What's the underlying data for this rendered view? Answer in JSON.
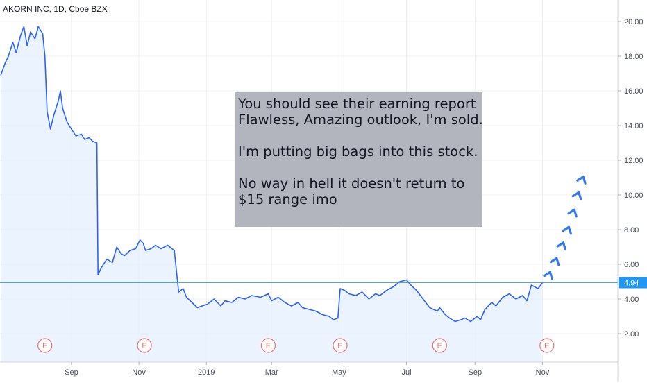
{
  "header": {
    "symbol_title": "AKORN INC, 1D, Cboe BZX"
  },
  "annotation": {
    "lines": [
      "You should see their earning report",
      "Flawless, Amazing outlook, I'm sold.",
      "",
      "I'm putting big bags into this stock.",
      "",
      "No way in hell it doesn't return to",
      "$15 range imo"
    ]
  },
  "colors": {
    "price_line": "#2962ff",
    "area_fill": "#e3effd",
    "grid": "#eef0f3",
    "axis_text": "#4c525e",
    "last_price_badge": "#2196f3",
    "earnings_marker": "#e57373",
    "annotation_bg": "#b2b5be",
    "arrow": "#3179f5"
  },
  "chart_data": {
    "type": "area",
    "title": "AKORN INC, 1D, Cboe BZX",
    "xlabel": "",
    "ylabel": "",
    "ylim": [
      1.0,
      21.5
    ],
    "y_ticks": [
      2.0,
      4.0,
      6.0,
      8.0,
      10.0,
      12.0,
      14.0,
      16.0,
      18.0,
      20.0
    ],
    "y_tick_labels": [
      "2.00",
      "4.00",
      "6.00",
      "8.00",
      "10.00",
      "12.00",
      "14.00",
      "16.00",
      "18.00",
      "20.00"
    ],
    "x_tick_labels": [
      "Sep",
      "Nov",
      "2019",
      "Mar",
      "May",
      "Jul",
      "Sep",
      "Nov"
    ],
    "last_price": 4.94,
    "last_price_label": "4.94",
    "earnings_marker_label": "E",
    "earnings_dates": [
      "2018-08-08",
      "2018-11-06",
      "2019-02-26",
      "2019-05-02",
      "2019-07-31",
      "2019-11-05"
    ],
    "series": [
      {
        "values": [
          [
            "2018-06-29",
            16.9
          ],
          [
            "2018-07-03",
            17.6
          ],
          [
            "2018-07-06",
            18.0
          ],
          [
            "2018-07-10",
            18.8
          ],
          [
            "2018-07-13",
            18.2
          ],
          [
            "2018-07-17",
            19.2
          ],
          [
            "2018-07-20",
            19.7
          ],
          [
            "2018-07-23",
            18.6
          ],
          [
            "2018-07-26",
            19.4
          ],
          [
            "2018-07-30",
            19.0
          ],
          [
            "2018-08-02",
            19.7
          ],
          [
            "2018-08-06",
            19.3
          ],
          [
            "2018-08-08",
            18.0
          ],
          [
            "2018-08-10",
            14.8
          ],
          [
            "2018-08-13",
            13.8
          ],
          [
            "2018-08-16",
            14.6
          ],
          [
            "2018-08-20",
            15.4
          ],
          [
            "2018-08-22",
            16.0
          ],
          [
            "2018-08-24",
            15.0
          ],
          [
            "2018-08-28",
            14.2
          ],
          [
            "2018-08-31",
            13.9
          ],
          [
            "2018-09-05",
            13.4
          ],
          [
            "2018-09-10",
            13.5
          ],
          [
            "2018-09-13",
            13.2
          ],
          [
            "2018-09-17",
            13.3
          ],
          [
            "2018-09-20",
            13.1
          ],
          [
            "2018-09-24",
            13.0
          ],
          [
            "2018-09-25",
            5.4
          ],
          [
            "2018-09-28",
            5.8
          ],
          [
            "2018-10-03",
            6.3
          ],
          [
            "2018-10-08",
            6.1
          ],
          [
            "2018-10-12",
            7.0
          ],
          [
            "2018-10-16",
            6.6
          ],
          [
            "2018-10-19",
            6.5
          ],
          [
            "2018-10-24",
            6.8
          ],
          [
            "2018-10-29",
            6.9
          ],
          [
            "2018-11-02",
            7.4
          ],
          [
            "2018-11-05",
            7.2
          ],
          [
            "2018-11-07",
            6.8
          ],
          [
            "2018-11-12",
            6.9
          ],
          [
            "2018-11-16",
            7.1
          ],
          [
            "2018-11-21",
            6.9
          ],
          [
            "2018-11-27",
            7.1
          ],
          [
            "2018-12-03",
            6.8
          ],
          [
            "2018-12-05",
            5.6
          ],
          [
            "2018-12-07",
            4.4
          ],
          [
            "2018-12-11",
            4.6
          ],
          [
            "2018-12-14",
            4.1
          ],
          [
            "2018-12-19",
            3.8
          ],
          [
            "2018-12-24",
            3.5
          ],
          [
            "2018-12-28",
            3.6
          ],
          [
            "2019-01-02",
            3.7
          ],
          [
            "2019-01-08",
            4.0
          ],
          [
            "2019-01-14",
            3.6
          ],
          [
            "2019-01-18",
            3.9
          ],
          [
            "2019-01-24",
            3.8
          ],
          [
            "2019-01-30",
            4.1
          ],
          [
            "2019-02-05",
            4.0
          ],
          [
            "2019-02-11",
            4.2
          ],
          [
            "2019-02-19",
            4.1
          ],
          [
            "2019-02-26",
            4.3
          ],
          [
            "2019-03-01",
            3.9
          ],
          [
            "2019-03-07",
            4.1
          ],
          [
            "2019-03-13",
            3.8
          ],
          [
            "2019-03-19",
            3.6
          ],
          [
            "2019-03-25",
            3.8
          ],
          [
            "2019-03-29",
            3.5
          ],
          [
            "2019-04-04",
            3.4
          ],
          [
            "2019-04-10",
            3.3
          ],
          [
            "2019-04-16",
            3.1
          ],
          [
            "2019-04-22",
            3.0
          ],
          [
            "2019-04-26",
            2.8
          ],
          [
            "2019-04-30",
            2.9
          ],
          [
            "2019-05-02",
            4.6
          ],
          [
            "2019-05-06",
            4.5
          ],
          [
            "2019-05-10",
            4.3
          ],
          [
            "2019-05-16",
            4.2
          ],
          [
            "2019-05-22",
            4.4
          ],
          [
            "2019-05-28",
            4.0
          ],
          [
            "2019-06-03",
            4.3
          ],
          [
            "2019-06-07",
            4.2
          ],
          [
            "2019-06-13",
            4.5
          ],
          [
            "2019-06-19",
            4.7
          ],
          [
            "2019-06-25",
            5.0
          ],
          [
            "2019-07-01",
            5.1
          ],
          [
            "2019-07-05",
            4.8
          ],
          [
            "2019-07-10",
            4.5
          ],
          [
            "2019-07-16",
            4.0
          ],
          [
            "2019-07-22",
            3.5
          ],
          [
            "2019-07-29",
            3.3
          ],
          [
            "2019-07-31",
            3.5
          ],
          [
            "2019-08-05",
            3.1
          ],
          [
            "2019-08-09",
            2.9
          ],
          [
            "2019-08-14",
            2.7
          ],
          [
            "2019-08-19",
            2.8
          ],
          [
            "2019-08-23",
            2.9
          ],
          [
            "2019-08-28",
            2.7
          ],
          [
            "2019-09-03",
            3.0
          ],
          [
            "2019-09-06",
            2.8
          ],
          [
            "2019-09-10",
            3.4
          ],
          [
            "2019-09-16",
            3.8
          ],
          [
            "2019-09-20",
            3.6
          ],
          [
            "2019-09-26",
            4.1
          ],
          [
            "2019-10-02",
            4.3
          ],
          [
            "2019-10-08",
            4.0
          ],
          [
            "2019-10-14",
            4.2
          ],
          [
            "2019-10-18",
            3.9
          ],
          [
            "2019-10-22",
            4.8
          ],
          [
            "2019-10-28",
            4.6
          ],
          [
            "2019-11-01",
            4.94
          ]
        ]
      }
    ],
    "arrow_targets": [
      [
        "2019-11-07",
        5.4
      ],
      [
        "2019-11-13",
        6.2
      ],
      [
        "2019-11-19",
        7.1
      ],
      [
        "2019-11-24",
        8.0
      ],
      [
        "2019-11-29",
        9.0
      ],
      [
        "2019-12-03",
        10.0
      ],
      [
        "2019-12-07",
        10.9
      ]
    ]
  }
}
